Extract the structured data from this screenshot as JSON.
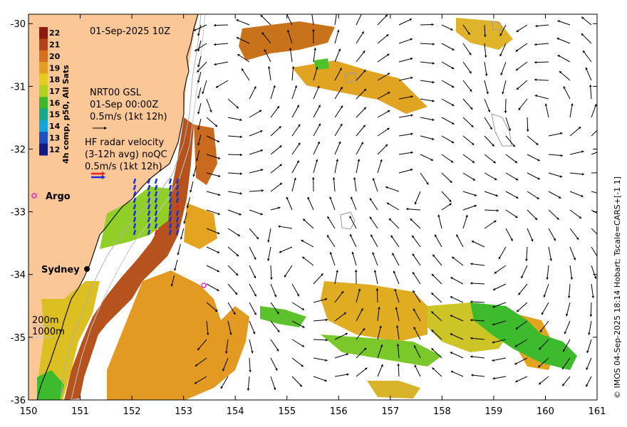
{
  "title": "01-Sep-2025 10Z",
  "credit": "© IMOS 04-Sep-2025 18:14 Hobart; Tscale=CARS+[-1 1]",
  "colorbar": {
    "label": "4h comp, p50, All Sats",
    "ticks": [
      "22",
      "21",
      "20",
      "19",
      "18",
      "17",
      "16",
      "15",
      "14",
      "13",
      "12"
    ],
    "colors": [
      "#8b1a10",
      "#b2431a",
      "#d6701f",
      "#e3a020",
      "#e6cc22",
      "#b0d21e",
      "#3fb72a",
      "#16a88d",
      "#12a6de",
      "#1f4fc2",
      "#101a80"
    ]
  },
  "gsl_legend": {
    "line1": "NRT00 GSL",
    "line2": "01-Sep 00:00Z",
    "line3": "0.5m/s (1kt 12h)"
  },
  "hf_legend": {
    "line1": "HF radar velocity",
    "line2": "(3-12h avg) noQC",
    "line3": "0.5m/s (1kt 12h)"
  },
  "places": {
    "argo": "Argo",
    "sydney": "Sydney"
  },
  "isobaths": {
    "l200": "200m",
    "l1000": "1000m"
  },
  "axes": {
    "x_ticks": [
      "150",
      "151",
      "152",
      "153",
      "154",
      "155",
      "156",
      "157",
      "158",
      "159",
      "160",
      "161"
    ],
    "y_ticks": [
      "-30",
      "-31",
      "-32",
      "-33",
      "-34",
      "-35",
      "-36"
    ],
    "xlim": [
      150,
      161
    ],
    "ylim": [
      -36,
      -29.85
    ]
  },
  "colors": {
    "land": "#fbc796",
    "ocean_nodata": "#ffffff",
    "hf_east": "#e8232a",
    "hf_north": "#1a2fd8",
    "argo_marker": "#e020e0"
  }
}
